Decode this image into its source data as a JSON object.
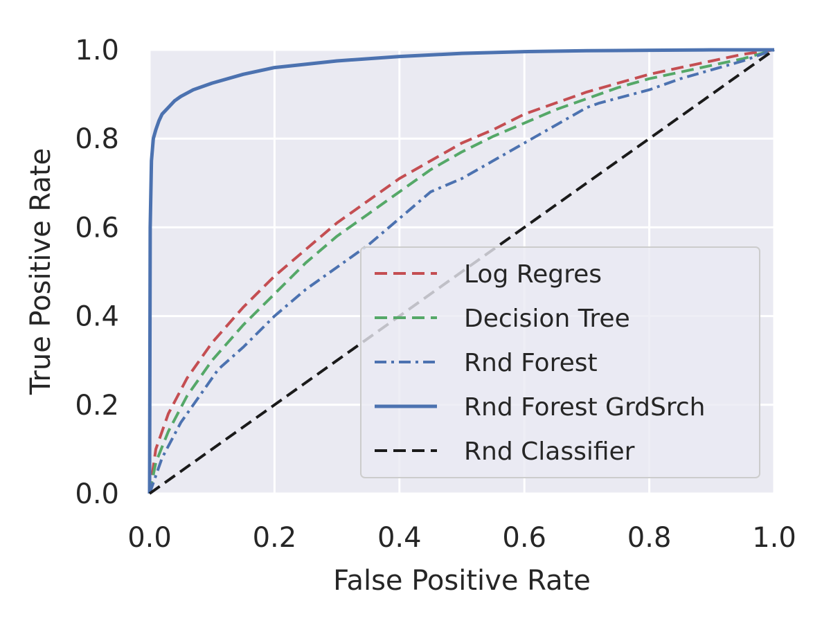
{
  "chart_data": {
    "type": "line",
    "title": "",
    "xlabel": "False Positive Rate",
    "ylabel": "True Positive Rate",
    "xlim": [
      0.0,
      1.0
    ],
    "ylim": [
      0.0,
      1.0
    ],
    "x_ticks": [
      "0.0",
      "0.2",
      "0.4",
      "0.6",
      "0.8",
      "1.0"
    ],
    "y_ticks": [
      "0.0",
      "0.2",
      "0.4",
      "0.6",
      "0.8",
      "1.0"
    ],
    "grid": true,
    "legend_position": "lower-right",
    "series": [
      {
        "name": "Log Regres",
        "color": "#c44e52",
        "style": "dashed",
        "x": [
          0.0,
          0.01,
          0.03,
          0.06,
          0.1,
          0.15,
          0.2,
          0.25,
          0.3,
          0.35,
          0.4,
          0.45,
          0.5,
          0.55,
          0.6,
          0.65,
          0.7,
          0.75,
          0.8,
          0.85,
          0.9,
          0.95,
          1.0
        ],
        "y": [
          0.0,
          0.1,
          0.18,
          0.26,
          0.34,
          0.42,
          0.49,
          0.55,
          0.61,
          0.66,
          0.71,
          0.75,
          0.79,
          0.82,
          0.855,
          0.88,
          0.905,
          0.925,
          0.945,
          0.96,
          0.975,
          0.99,
          1.0
        ]
      },
      {
        "name": "Decision Tree",
        "color": "#55a868",
        "style": "dashed",
        "x": [
          0.0,
          0.01,
          0.03,
          0.06,
          0.1,
          0.15,
          0.2,
          0.25,
          0.3,
          0.35,
          0.4,
          0.45,
          0.5,
          0.55,
          0.6,
          0.65,
          0.7,
          0.75,
          0.8,
          0.85,
          0.9,
          0.95,
          1.0
        ],
        "y": [
          0.0,
          0.07,
          0.14,
          0.22,
          0.3,
          0.38,
          0.45,
          0.52,
          0.58,
          0.63,
          0.68,
          0.73,
          0.77,
          0.805,
          0.835,
          0.865,
          0.89,
          0.915,
          0.935,
          0.95,
          0.965,
          0.98,
          1.0
        ]
      },
      {
        "name": "Rnd Forest",
        "color": "#4c72b0",
        "style": "dashdot",
        "x": [
          0.0,
          0.02,
          0.05,
          0.08,
          0.11,
          0.15,
          0.2,
          0.25,
          0.3,
          0.35,
          0.4,
          0.45,
          0.5,
          0.55,
          0.6,
          0.65,
          0.7,
          0.72,
          0.8,
          0.85,
          0.9,
          0.95,
          1.0
        ],
        "y": [
          0.0,
          0.08,
          0.16,
          0.22,
          0.28,
          0.33,
          0.4,
          0.46,
          0.51,
          0.56,
          0.62,
          0.68,
          0.71,
          0.75,
          0.79,
          0.83,
          0.87,
          0.88,
          0.91,
          0.935,
          0.955,
          0.975,
          1.0
        ]
      },
      {
        "name": "Rnd Forest GrdSrch",
        "color": "#4c72b0",
        "style": "solid",
        "x": [
          0.0,
          0.001,
          0.003,
          0.006,
          0.01,
          0.015,
          0.02,
          0.03,
          0.04,
          0.05,
          0.07,
          0.1,
          0.15,
          0.2,
          0.3,
          0.4,
          0.5,
          0.6,
          0.7,
          0.8,
          0.9,
          1.0
        ],
        "y": [
          0.0,
          0.6,
          0.75,
          0.8,
          0.82,
          0.84,
          0.855,
          0.87,
          0.885,
          0.895,
          0.91,
          0.925,
          0.945,
          0.96,
          0.975,
          0.985,
          0.992,
          0.996,
          0.998,
          0.999,
          1.0,
          1.0
        ]
      },
      {
        "name": "Rnd Classifier",
        "color": "#1a1a1a",
        "style": "dashed",
        "x": [
          0.0,
          1.0
        ],
        "y": [
          0.0,
          1.0
        ]
      }
    ]
  }
}
